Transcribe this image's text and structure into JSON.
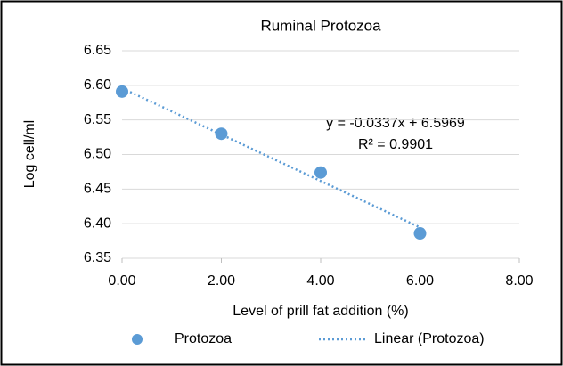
{
  "chart_data": {
    "type": "scatter",
    "title": "Ruminal Protozoa",
    "x_label": "Level of prill fat addition (%)",
    "y_label": "Log cell/ml",
    "series": [
      {
        "name": "Protozoa",
        "color": "#5b9bd5",
        "x": [
          0,
          2,
          4,
          6
        ],
        "values": [
          6.591,
          6.53,
          6.474,
          6.386
        ]
      }
    ],
    "trendline": {
      "name": "Linear (Protozoa)",
      "equation": "y = -0.0337x + 6.5969",
      "r_squared": "R² = 0.9901"
    },
    "xlim": [
      0,
      8
    ],
    "xticks": [
      {
        "value": 0,
        "label": "0.00"
      },
      {
        "value": 2,
        "label": "2.00"
      },
      {
        "value": 4,
        "label": "4.00"
      },
      {
        "value": 6,
        "label": "6.00"
      },
      {
        "value": 8,
        "label": "8.00"
      }
    ],
    "ylim": [
      6.35,
      6.65
    ],
    "yticks": [
      6.35,
      {
        "value": 6.4,
        "label": "6.40"
      },
      6.45,
      {
        "value": 6.5,
        "label": "6.50"
      },
      6.55,
      {
        "value": 6.6,
        "label": "6.60"
      },
      6.65
    ],
    "grid": true,
    "legend": "bottom"
  }
}
